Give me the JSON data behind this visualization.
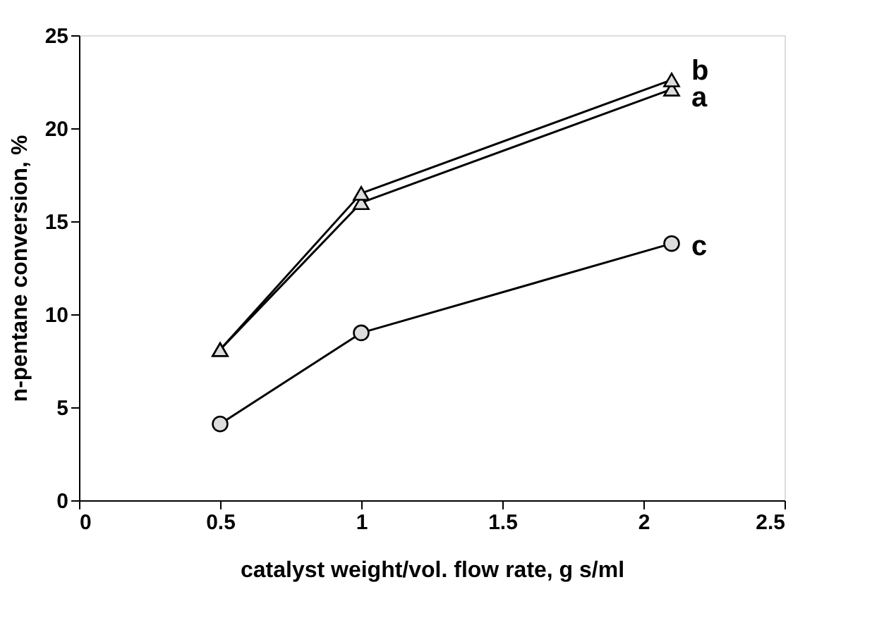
{
  "chart_data": {
    "type": "line",
    "xlabel": "catalyst weight/vol. flow rate, g s/ml",
    "ylabel": "n-pentane conversion, %",
    "x": [
      0.5,
      1,
      2.1
    ],
    "series": [
      {
        "name": "a",
        "color": "#000000",
        "marker": "triangle",
        "values": [
          8.1,
          16.0,
          22.1
        ]
      },
      {
        "name": "b",
        "color": "#000000",
        "marker": "triangle",
        "values": [
          8.1,
          16.5,
          22.6
        ]
      },
      {
        "name": "c",
        "color": "#000000",
        "marker": "circle",
        "values": [
          4.1,
          9.0,
          13.8
        ]
      }
    ],
    "xlim": [
      0,
      2.5
    ],
    "xticks": [
      0,
      0.5,
      1,
      1.5,
      2,
      2.5
    ],
    "ylim": [
      0,
      25
    ],
    "yticks": [
      0,
      5,
      10,
      15,
      20,
      25
    ],
    "grid": false,
    "legend": false,
    "line_style": "solid"
  }
}
